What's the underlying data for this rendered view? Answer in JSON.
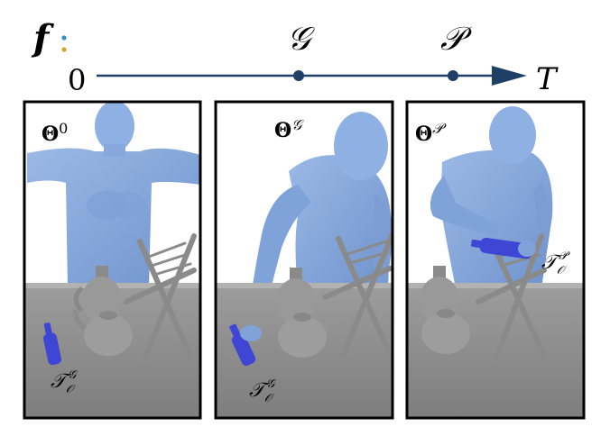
{
  "timeline": {
    "function_symbol": "f",
    "colon": ":",
    "start_label": "0",
    "end_label": "T",
    "event_labels": [
      "𝒢",
      "𝒫"
    ]
  },
  "panels": [
    {
      "pose_label": "Θ",
      "pose_superscript": "0",
      "trajectory_label": "𝒯",
      "trajectory_sub": "𝒪",
      "trajectory_sup": "𝒢"
    },
    {
      "pose_label": "Θ",
      "pose_superscript": "𝒢",
      "trajectory_label": "𝒯",
      "trajectory_sub": "𝒪",
      "trajectory_sup": "𝒢"
    },
    {
      "pose_label": "Θ",
      "pose_superscript": "𝒫",
      "trajectory_label": "𝒯",
      "trajectory_sub": "𝒪",
      "trajectory_sup": "𝒫"
    }
  ],
  "colors": {
    "timeline": "#1f3f66",
    "body": "#86a8dc",
    "body_shade": "#6f93cc",
    "bottle": "#3f46d6",
    "table": "#8e8e8e",
    "table_top": "#a6a6a6",
    "object": "#9a9a9a",
    "colon_dot_1": "#3a8fc9",
    "colon_dot_2": "#d6a52a"
  }
}
